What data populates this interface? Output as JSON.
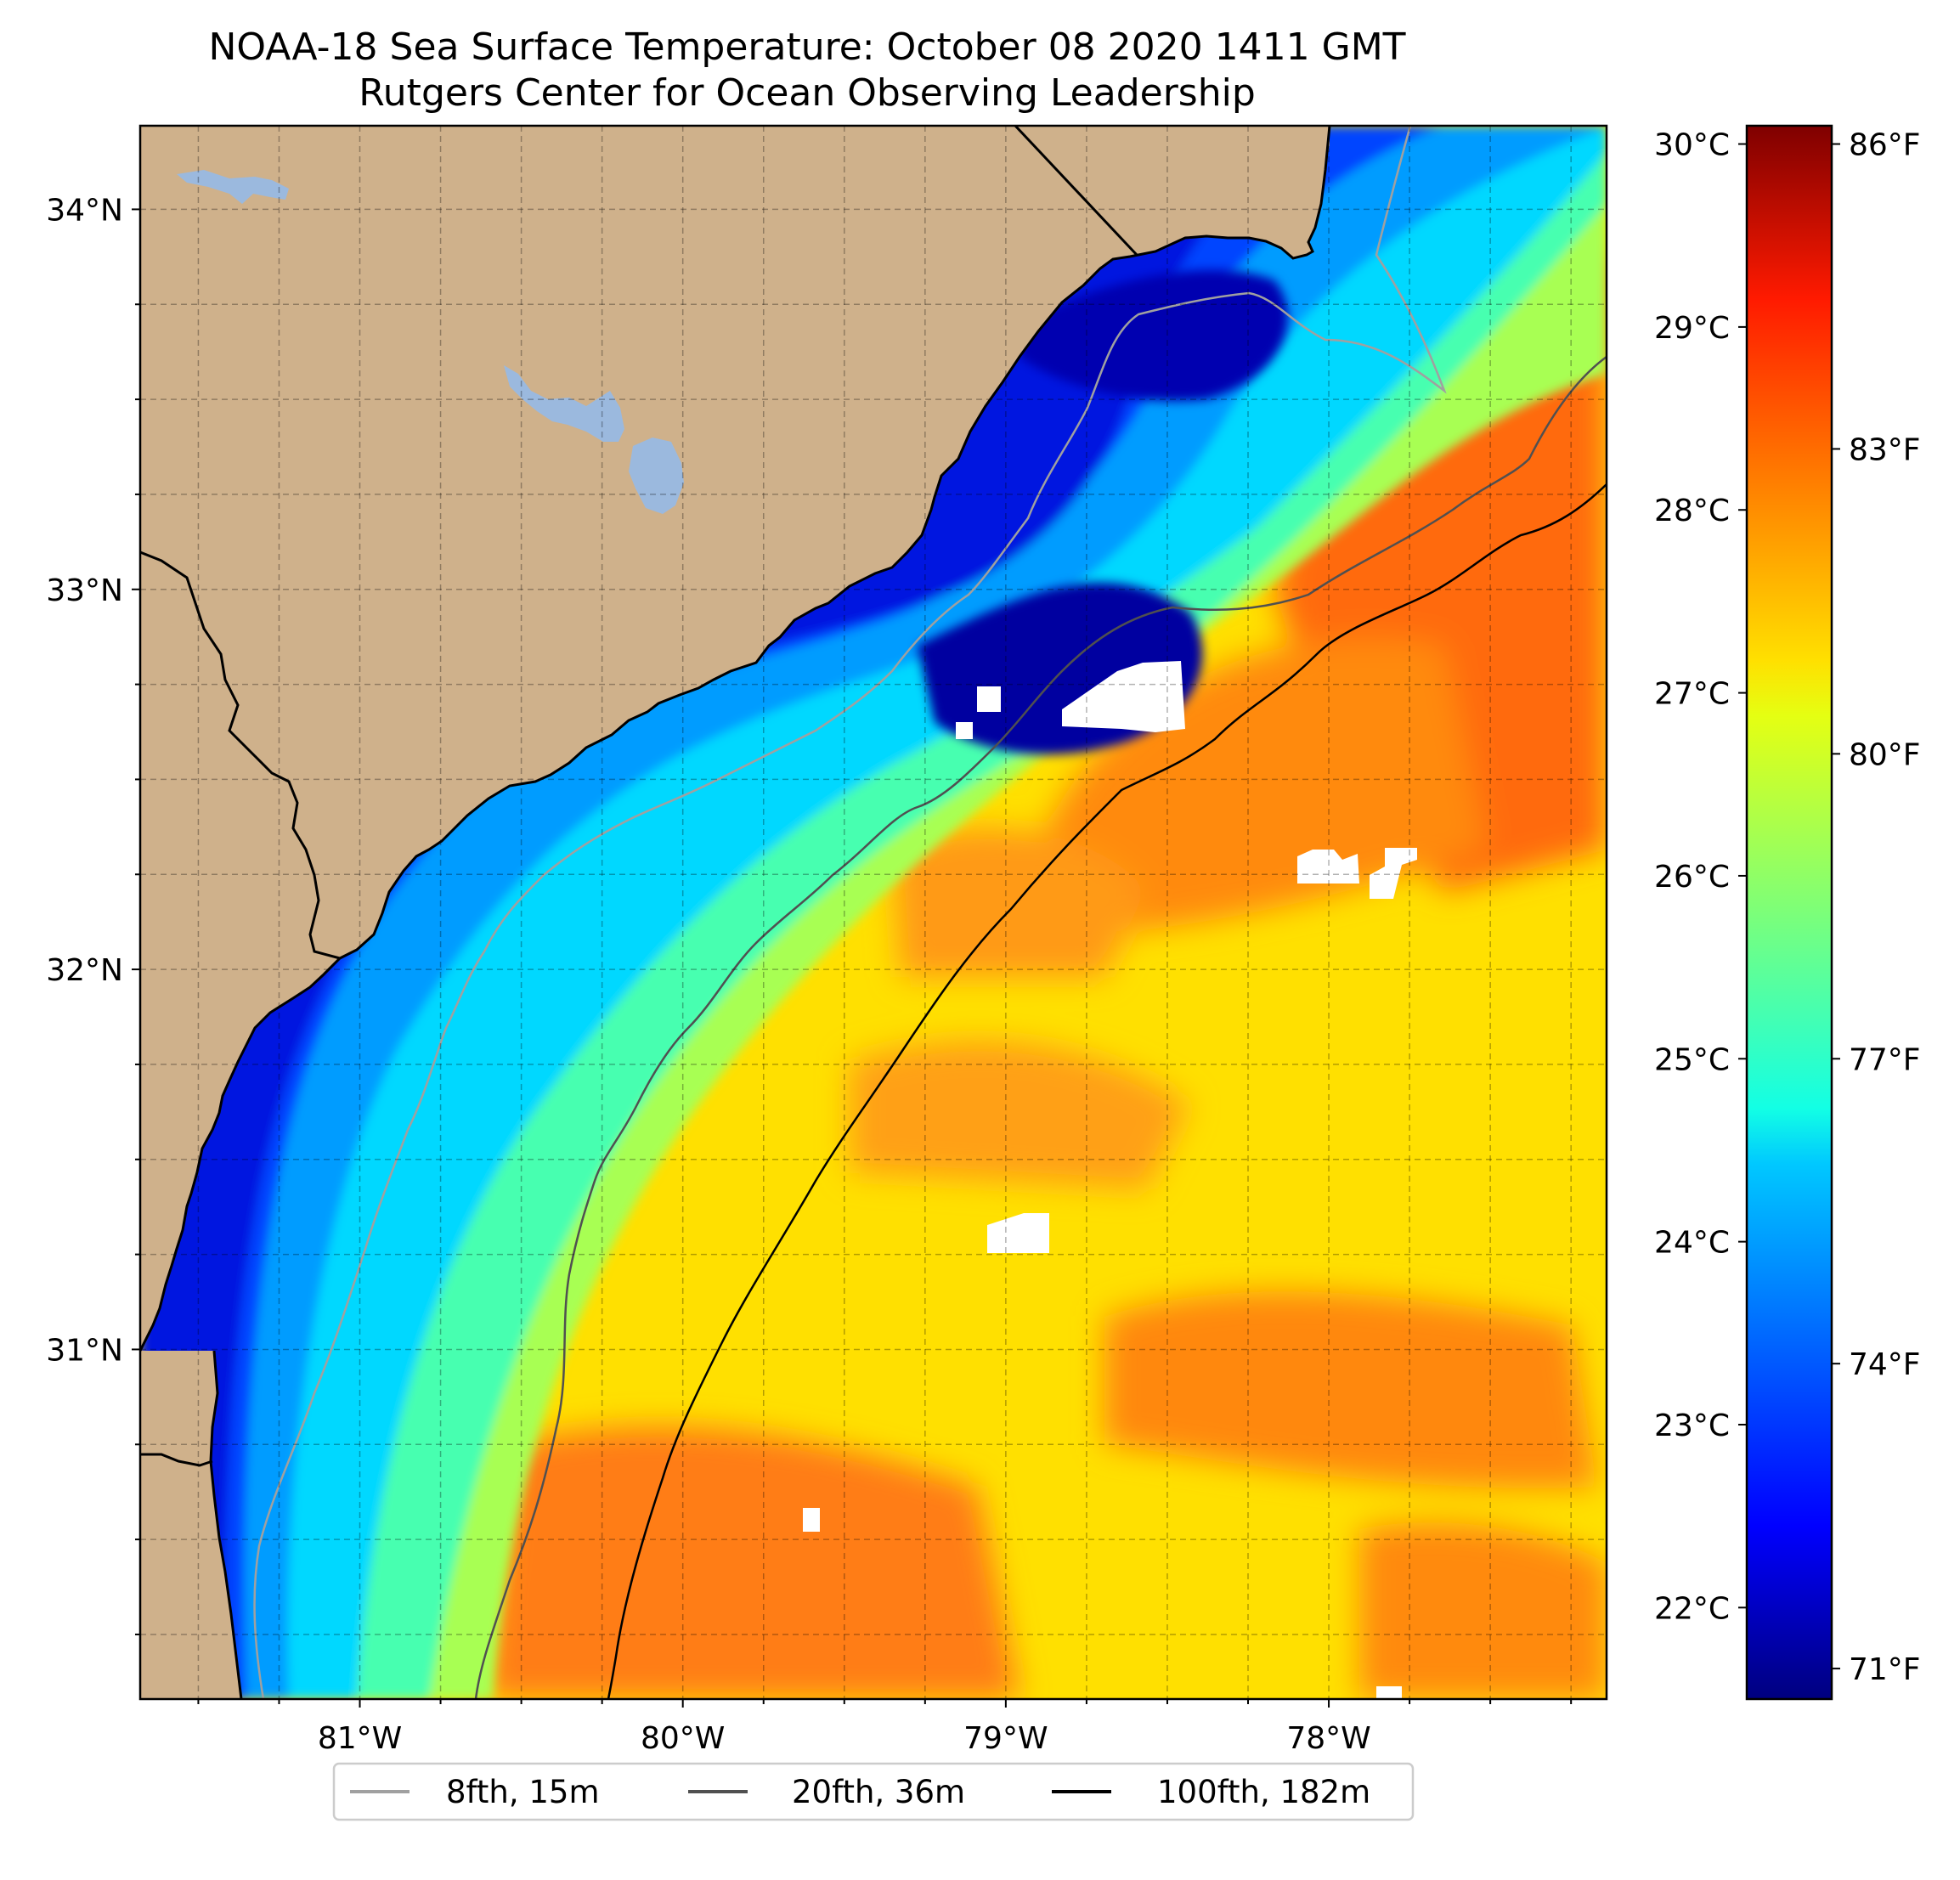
{
  "chart_data": {
    "type": "heatmap",
    "title": "NOAA-18 Sea Surface Temperature: October 08 2020 1411 GMT",
    "subtitle": "Rutgers Center for Ocean Observing Leadership",
    "xlabel": "",
    "ylabel": "",
    "x_ticks": [
      "81°W",
      "80°W",
      "79°W",
      "78°W"
    ],
    "x_tick_values": [
      -81,
      -80,
      -79,
      -78
    ],
    "y_ticks": [
      "34°N",
      "33°N",
      "32°N",
      "31°N"
    ],
    "y_tick_values": [
      34,
      33,
      32,
      31
    ],
    "xlim": [
      -81.68,
      -77.14
    ],
    "ylim": [
      30.08,
      34.22
    ],
    "grid": true,
    "colorbar": {
      "colormap": "jet",
      "range_c": [
        21.5,
        30.1
      ],
      "celsius_ticks": [
        "30°C",
        "29°C",
        "28°C",
        "27°C",
        "26°C",
        "25°C",
        "24°C",
        "23°C",
        "22°C"
      ],
      "celsius_values": [
        30,
        29,
        28,
        27,
        26,
        25,
        24,
        23,
        22
      ],
      "fahrenheit_ticks": [
        "86°F",
        "83°F",
        "80°F",
        "77°F",
        "74°F",
        "71°F"
      ],
      "fahrenheit_values": [
        86,
        83,
        80,
        77,
        74,
        71
      ]
    },
    "legend": {
      "placement": "bottom-center",
      "entries": [
        {
          "label": "8fth, 15m",
          "color": "#a0a0a0"
        },
        {
          "label": "20fth, 36m",
          "color": "#505050"
        },
        {
          "label": "100fth, 182m",
          "color": "#000000"
        }
      ]
    },
    "colors": {
      "land": "#cfb18b",
      "lakes": "#9bb9de",
      "no_data": "#ffffff",
      "isobath_8fth": "#a0a0a0",
      "isobath_20fth": "#505050",
      "isobath_100fth": "#000000"
    }
  }
}
